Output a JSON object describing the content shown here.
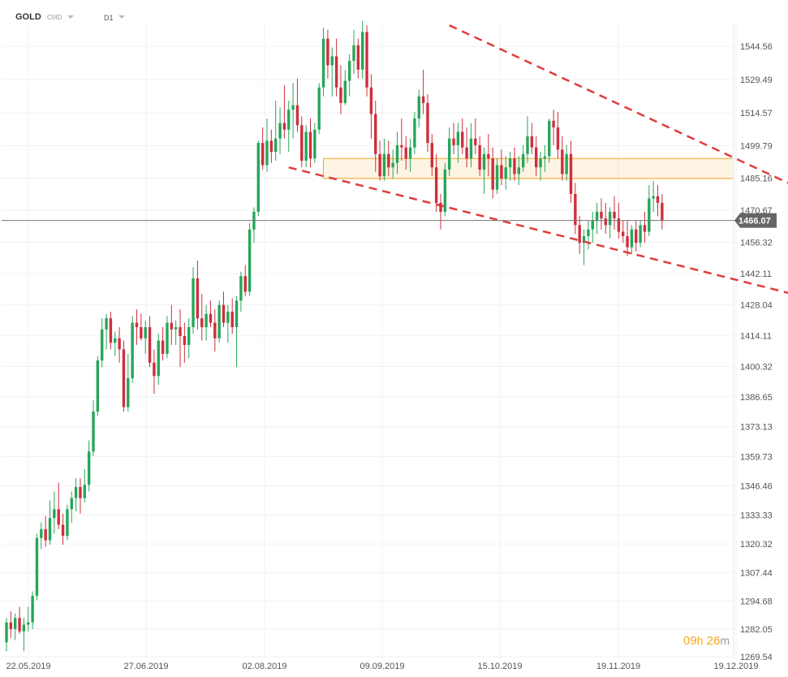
{
  "header": {
    "symbol": "GOLD",
    "source": "CMD",
    "timeframe": "D1"
  },
  "timer": {
    "hours": "09",
    "h_unit": "h",
    "minutes": "26",
    "m_unit": "m"
  },
  "chart_data": {
    "type": "candlestick",
    "y_ticks": [
      "1544.56",
      "1529.49",
      "1514.57",
      "1499.79",
      "1485.16",
      "1470.67",
      "1456.32",
      "1442.11",
      "1428.04",
      "1414.11",
      "1400.32",
      "1386.65",
      "1373.13",
      "1359.73",
      "1346.46",
      "1333.33",
      "1320.32",
      "1307.44",
      "1294.68",
      "1282.05",
      "1269.54"
    ],
    "x_ticks": [
      "22.05.2019",
      "27.06.2019",
      "02.08.2019",
      "09.09.2019",
      "15.10.2019",
      "19.11.2019",
      "19.12.2019"
    ],
    "current_price": "1466.07",
    "ylim": [
      1269.54,
      1557
    ],
    "colors": {
      "up": "#26a65b",
      "down": "#cf2e3c",
      "trend": "#e03c3c",
      "zone": "#f5a623",
      "price_line": "#777777",
      "price_tag": "#666666"
    },
    "candles": [
      [
        1276,
        1287,
        1272,
        1285
      ],
      [
        1285,
        1290,
        1278,
        1282
      ],
      [
        1282,
        1289,
        1277,
        1287
      ],
      [
        1287,
        1292,
        1280,
        1281
      ],
      [
        1281,
        1287,
        1272,
        1284
      ],
      [
        1284,
        1292,
        1281,
        1285
      ],
      [
        1285,
        1299,
        1282,
        1297
      ],
      [
        1297,
        1325,
        1295,
        1323
      ],
      [
        1323,
        1330,
        1318,
        1327
      ],
      [
        1327,
        1333,
        1319,
        1322
      ],
      [
        1322,
        1340,
        1320,
        1332
      ],
      [
        1332,
        1344,
        1325,
        1336
      ],
      [
        1336,
        1348,
        1327,
        1329
      ],
      [
        1329,
        1334,
        1320,
        1324
      ],
      [
        1324,
        1338,
        1322,
        1336
      ],
      [
        1336,
        1344,
        1330,
        1341
      ],
      [
        1341,
        1350,
        1335,
        1346
      ],
      [
        1346,
        1350,
        1334,
        1341
      ],
      [
        1341,
        1354,
        1339,
        1347
      ],
      [
        1347,
        1367,
        1344,
        1362
      ],
      [
        1362,
        1385,
        1360,
        1380
      ],
      [
        1380,
        1405,
        1378,
        1403
      ],
      [
        1403,
        1422,
        1400,
        1417
      ],
      [
        1417,
        1424,
        1408,
        1422
      ],
      [
        1422,
        1425,
        1408,
        1411
      ],
      [
        1411,
        1416,
        1405,
        1413
      ],
      [
        1413,
        1418,
        1402,
        1408
      ],
      [
        1408,
        1412,
        1380,
        1382
      ],
      [
        1382,
        1406,
        1380,
        1395
      ],
      [
        1395,
        1423,
        1393,
        1420
      ],
      [
        1420,
        1426,
        1410,
        1418
      ],
      [
        1418,
        1424,
        1412,
        1413
      ],
      [
        1413,
        1421,
        1406,
        1418
      ],
      [
        1418,
        1423,
        1400,
        1402
      ],
      [
        1402,
        1408,
        1388,
        1396
      ],
      [
        1396,
        1415,
        1392,
        1412
      ],
      [
        1412,
        1418,
        1403,
        1406
      ],
      [
        1406,
        1423,
        1404,
        1420
      ],
      [
        1420,
        1428,
        1410,
        1417
      ],
      [
        1417,
        1421,
        1410,
        1418
      ],
      [
        1418,
        1426,
        1400,
        1414
      ],
      [
        1414,
        1420,
        1402,
        1410
      ],
      [
        1410,
        1422,
        1404,
        1418
      ],
      [
        1418,
        1445,
        1415,
        1440
      ],
      [
        1440,
        1448,
        1417,
        1422
      ],
      [
        1422,
        1433,
        1412,
        1418
      ],
      [
        1418,
        1428,
        1412,
        1424
      ],
      [
        1424,
        1430,
        1418,
        1420
      ],
      [
        1420,
        1426,
        1407,
        1413
      ],
      [
        1413,
        1430,
        1411,
        1428
      ],
      [
        1428,
        1434,
        1418,
        1420
      ],
      [
        1420,
        1428,
        1411,
        1425
      ],
      [
        1425,
        1431,
        1415,
        1418
      ],
      [
        1418,
        1432,
        1400,
        1430
      ],
      [
        1430,
        1443,
        1425,
        1441
      ],
      [
        1441,
        1446,
        1432,
        1434
      ],
      [
        1434,
        1465,
        1432,
        1462
      ],
      [
        1462,
        1472,
        1456,
        1470
      ],
      [
        1470,
        1502,
        1468,
        1501
      ],
      [
        1501,
        1508,
        1489,
        1491
      ],
      [
        1491,
        1512,
        1488,
        1502
      ],
      [
        1502,
        1507,
        1492,
        1497
      ],
      [
        1497,
        1520,
        1493,
        1503
      ],
      [
        1503,
        1517,
        1496,
        1510
      ],
      [
        1510,
        1527,
        1503,
        1507
      ],
      [
        1507,
        1520,
        1497,
        1516
      ],
      [
        1516,
        1528,
        1503,
        1518
      ],
      [
        1518,
        1530,
        1506,
        1509
      ],
      [
        1509,
        1513,
        1490,
        1493
      ],
      [
        1493,
        1509,
        1490,
        1506
      ],
      [
        1506,
        1512,
        1490,
        1494
      ],
      [
        1494,
        1510,
        1492,
        1507
      ],
      [
        1507,
        1528,
        1505,
        1526
      ],
      [
        1526,
        1553,
        1522,
        1548
      ],
      [
        1548,
        1552,
        1530,
        1536
      ],
      [
        1536,
        1544,
        1522,
        1540
      ],
      [
        1540,
        1548,
        1522,
        1526
      ],
      [
        1526,
        1536,
        1514,
        1519
      ],
      [
        1519,
        1534,
        1518,
        1529
      ],
      [
        1529,
        1541,
        1522,
        1538
      ],
      [
        1538,
        1552,
        1532,
        1545
      ],
      [
        1545,
        1548,
        1530,
        1534
      ],
      [
        1534,
        1556,
        1530,
        1551
      ],
      [
        1551,
        1554,
        1522,
        1526
      ],
      [
        1526,
        1532,
        1503,
        1514
      ],
      [
        1514,
        1520,
        1488,
        1496
      ],
      [
        1496,
        1502,
        1484,
        1486
      ],
      [
        1486,
        1503,
        1484,
        1496
      ],
      [
        1496,
        1502,
        1486,
        1490
      ],
      [
        1490,
        1498,
        1485,
        1492
      ],
      [
        1492,
        1506,
        1487,
        1500
      ],
      [
        1500,
        1512,
        1493,
        1499
      ],
      [
        1499,
        1504,
        1489,
        1494
      ],
      [
        1494,
        1503,
        1488,
        1499
      ],
      [
        1499,
        1515,
        1496,
        1512
      ],
      [
        1512,
        1525,
        1508,
        1522
      ],
      [
        1522,
        1534,
        1514,
        1519
      ],
      [
        1519,
        1523,
        1497,
        1501
      ],
      [
        1501,
        1505,
        1486,
        1490
      ],
      [
        1490,
        1496,
        1470,
        1474
      ],
      [
        1474,
        1478,
        1462,
        1470
      ],
      [
        1470,
        1492,
        1468,
        1489
      ],
      [
        1489,
        1508,
        1486,
        1503
      ],
      [
        1503,
        1510,
        1496,
        1500
      ],
      [
        1500,
        1510,
        1492,
        1506
      ],
      [
        1506,
        1512,
        1496,
        1499
      ],
      [
        1499,
        1508,
        1490,
        1494
      ],
      [
        1494,
        1510,
        1490,
        1503
      ],
      [
        1503,
        1512,
        1496,
        1500
      ],
      [
        1500,
        1504,
        1486,
        1489
      ],
      [
        1489,
        1499,
        1478,
        1496
      ],
      [
        1496,
        1505,
        1486,
        1494
      ],
      [
        1494,
        1499,
        1476,
        1480
      ],
      [
        1480,
        1494,
        1478,
        1491
      ],
      [
        1491,
        1498,
        1482,
        1485
      ],
      [
        1485,
        1495,
        1480,
        1490
      ],
      [
        1490,
        1497,
        1484,
        1494
      ],
      [
        1494,
        1499,
        1484,
        1487
      ],
      [
        1487,
        1495,
        1482,
        1490
      ],
      [
        1490,
        1500,
        1488,
        1496
      ],
      [
        1496,
        1513,
        1492,
        1504
      ],
      [
        1504,
        1510,
        1496,
        1499
      ],
      [
        1499,
        1504,
        1486,
        1490
      ],
      [
        1490,
        1497,
        1484,
        1494
      ],
      [
        1494,
        1500,
        1488,
        1495
      ],
      [
        1495,
        1512,
        1492,
        1511
      ],
      [
        1511,
        1516,
        1500,
        1508
      ],
      [
        1508,
        1515,
        1494,
        1498
      ],
      [
        1498,
        1504,
        1484,
        1487
      ],
      [
        1487,
        1500,
        1484,
        1496
      ],
      [
        1496,
        1502,
        1474,
        1478
      ],
      [
        1478,
        1483,
        1460,
        1464
      ],
      [
        1464,
        1468,
        1451,
        1456
      ],
      [
        1456,
        1462,
        1446,
        1459
      ],
      [
        1459,
        1466,
        1453,
        1462
      ],
      [
        1462,
        1470,
        1456,
        1466
      ],
      [
        1466,
        1474,
        1460,
        1470
      ],
      [
        1470,
        1476,
        1462,
        1467
      ],
      [
        1467,
        1474,
        1460,
        1464
      ],
      [
        1464,
        1472,
        1458,
        1470
      ],
      [
        1470,
        1477,
        1462,
        1467
      ],
      [
        1467,
        1474,
        1458,
        1461
      ],
      [
        1461,
        1466,
        1456,
        1459
      ],
      [
        1459,
        1466,
        1450,
        1454
      ],
      [
        1454,
        1464,
        1451,
        1462
      ],
      [
        1462,
        1466,
        1452,
        1456
      ],
      [
        1456,
        1466,
        1454,
        1464
      ],
      [
        1464,
        1470,
        1456,
        1461
      ],
      [
        1461,
        1482,
        1459,
        1476
      ],
      [
        1476,
        1484,
        1470,
        1477
      ],
      [
        1477,
        1482,
        1468,
        1474
      ],
      [
        1474,
        1478,
        1462,
        1466
      ]
    ],
    "trendlines": [
      {
        "from": [
          102,
          1554
        ],
        "to": [
          180,
          1483
        ]
      },
      {
        "from": [
          65,
          1490
        ],
        "to": [
          183,
          1432
        ]
      }
    ],
    "zone": {
      "top": 1494,
      "bottom": 1485,
      "from": 73,
      "to": 210
    }
  }
}
